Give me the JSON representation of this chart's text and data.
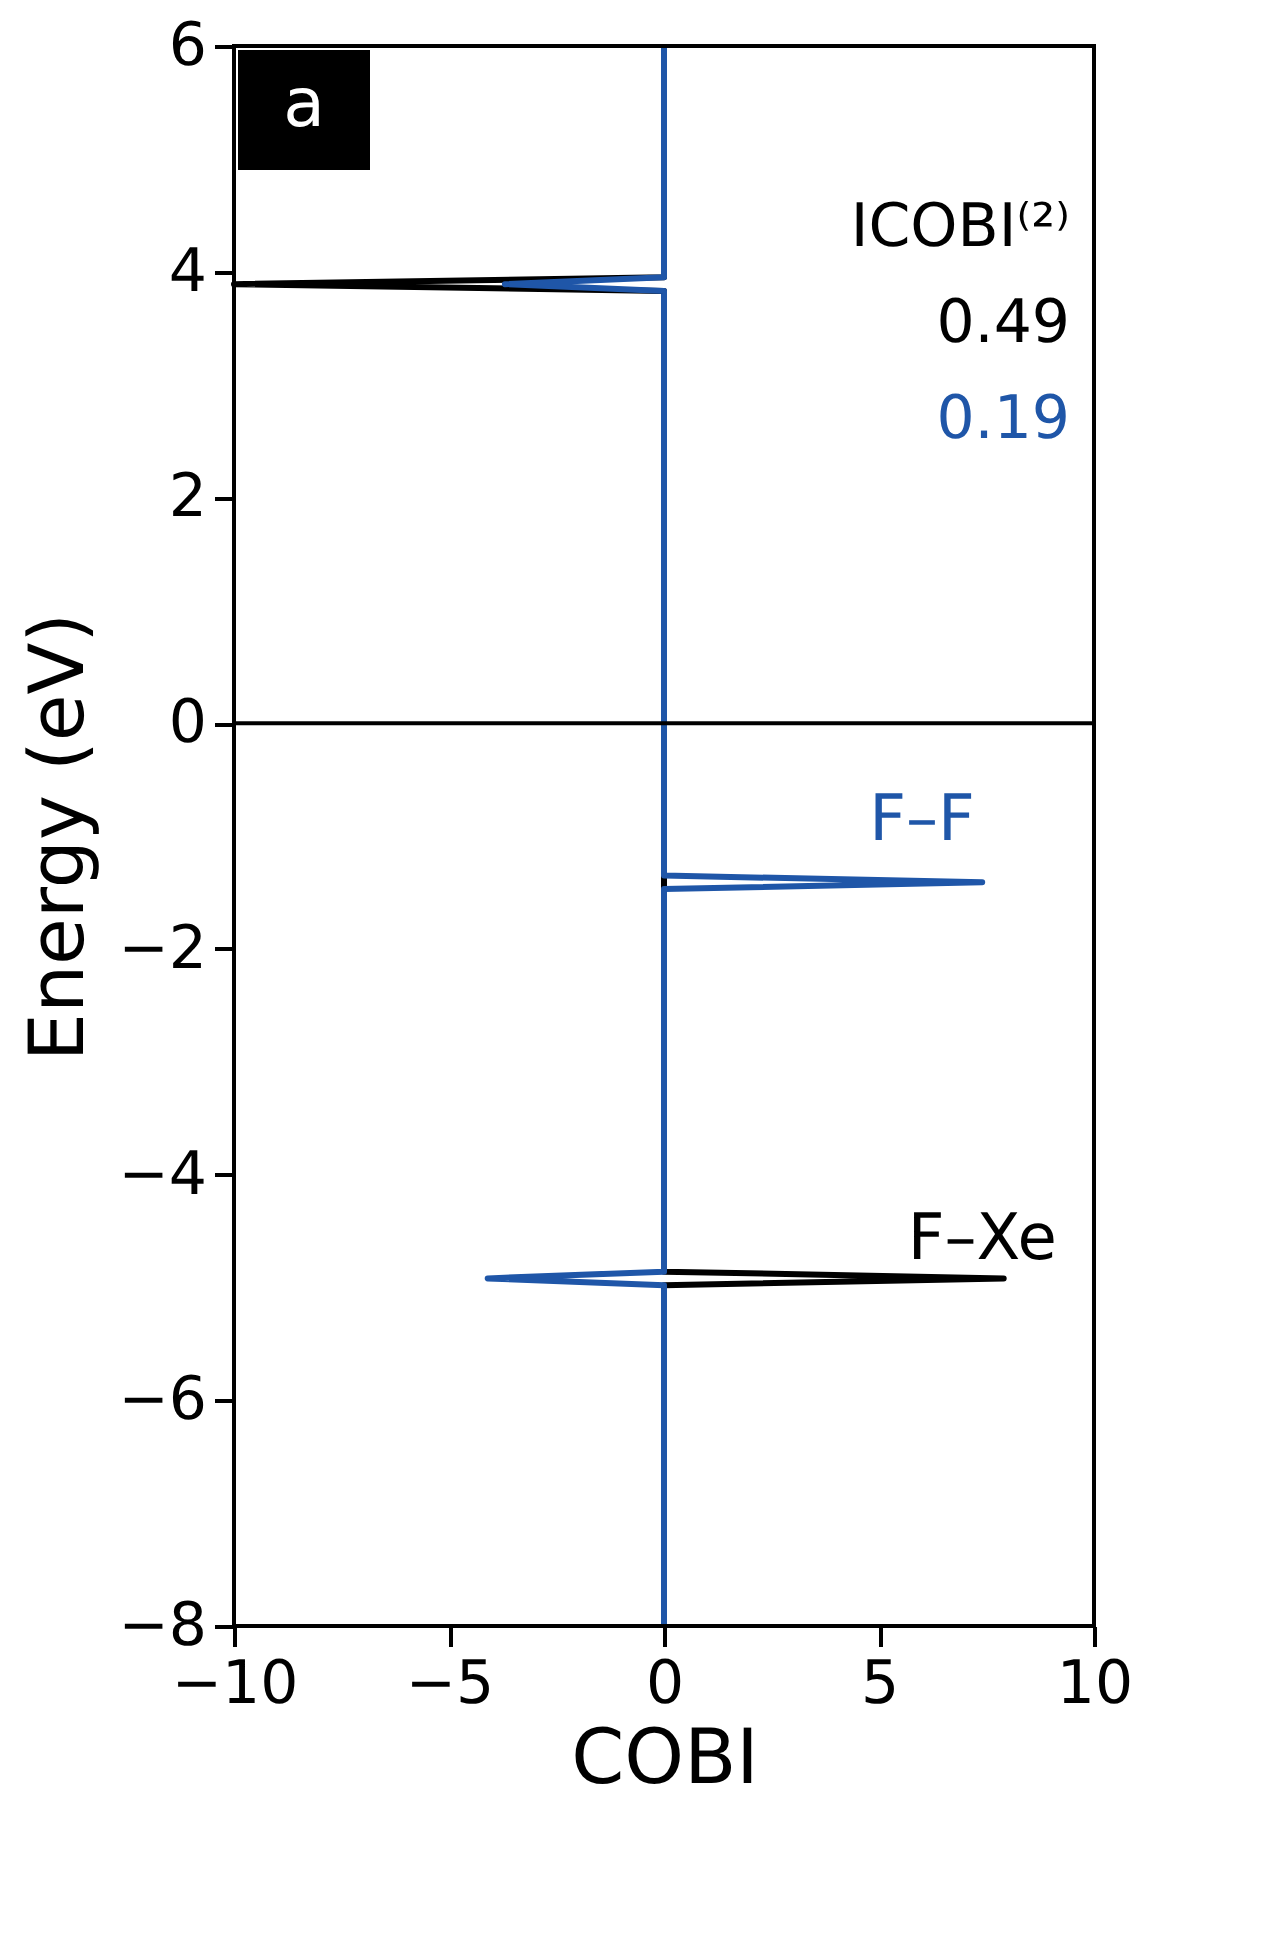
{
  "chart_data": {
    "type": "line",
    "xlabel": "COBI",
    "ylabel": "Energy (eV)",
    "xlim": [
      -10,
      10
    ],
    "xticks": [
      -10,
      -5,
      0,
      5,
      10
    ],
    "ylim": [
      -8,
      6
    ],
    "yticks": [
      -8,
      -6,
      -4,
      -2,
      0,
      2,
      4,
      6
    ],
    "grid": false,
    "legend": false,
    "line_style": "solid",
    "marker": "none",
    "ref_lines": [
      {
        "axis": "y",
        "value": 0,
        "color": "#000000"
      }
    ],
    "annotations": [
      "a",
      "ICOBI⁽²⁾",
      "0.49",
      "0.19"
    ],
    "series": [
      {
        "name": "F–Xe",
        "color": "#000000",
        "x": [
          0,
          0,
          -10,
          0,
          0,
          7.9,
          0,
          0
        ],
        "values": [
          6,
          3.95,
          3.89,
          3.83,
          -4.86,
          -4.92,
          -4.98,
          -8
        ]
      },
      {
        "name": "F–F",
        "color": "#1f56a8",
        "x": [
          0,
          0,
          -3.7,
          0,
          0,
          7.4,
          0,
          0,
          -4.1,
          0,
          0
        ],
        "values": [
          6,
          3.95,
          3.89,
          3.83,
          -1.35,
          -1.41,
          -1.47,
          -4.86,
          -4.92,
          -4.98,
          -8
        ]
      }
    ]
  }
}
